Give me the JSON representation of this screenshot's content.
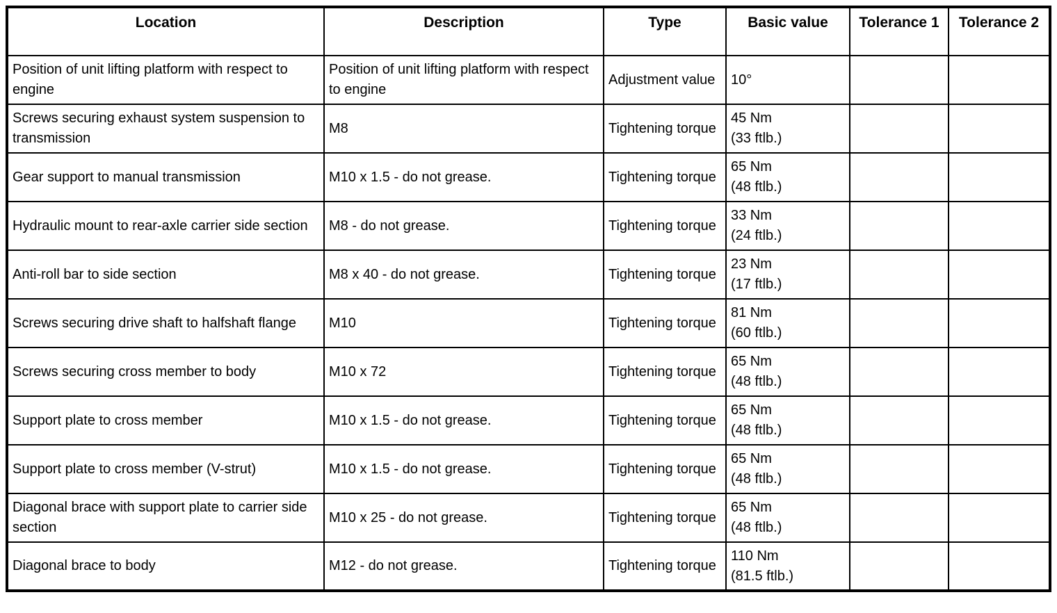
{
  "table": {
    "headers": [
      "Location",
      "Description",
      "Type",
      "Basic value",
      "Tolerance 1",
      "Tolerance 2"
    ],
    "rows": [
      {
        "location": "Position of unit lifting platform with respect to engine",
        "description": "Position of unit lifting platform with respect to engine",
        "type": "Adjustment value",
        "basic_value": "10°",
        "tolerance1": "",
        "tolerance2": ""
      },
      {
        "location": "Screws securing exhaust system suspension to transmission",
        "description": "M8",
        "type": "Tightening torque",
        "basic_value": "45 Nm\n(33 ftlb.)",
        "tolerance1": "",
        "tolerance2": ""
      },
      {
        "location": "Gear support to manual transmission",
        "description": "M10 x 1.5 - do not grease.",
        "type": "Tightening torque",
        "basic_value": "65 Nm\n(48 ftlb.)",
        "tolerance1": "",
        "tolerance2": ""
      },
      {
        "location": "Hydraulic mount to rear-axle carrier side section",
        "description": "M8 - do not grease.",
        "type": "Tightening torque",
        "basic_value": "33 Nm\n(24 ftlb.)",
        "tolerance1": "",
        "tolerance2": ""
      },
      {
        "location": "Anti-roll bar to side section",
        "description": "M8 x 40 - do not grease.",
        "type": "Tightening torque",
        "basic_value": "23 Nm\n(17 ftlb.)",
        "tolerance1": "",
        "tolerance2": ""
      },
      {
        "location": "Screws securing drive shaft to halfshaft flange",
        "description": "M10",
        "type": "Tightening torque",
        "basic_value": "81 Nm\n(60 ftlb.)",
        "tolerance1": "",
        "tolerance2": ""
      },
      {
        "location": "Screws securing cross member to body",
        "description": "M10 x 72",
        "type": "Tightening torque",
        "basic_value": "65 Nm\n(48 ftlb.)",
        "tolerance1": "",
        "tolerance2": ""
      },
      {
        "location": "Support plate to cross member",
        "description": "M10 x 1.5 - do not grease.",
        "type": "Tightening torque",
        "basic_value": "65 Nm\n(48 ftlb.)",
        "tolerance1": "",
        "tolerance2": ""
      },
      {
        "location": "Support plate to cross member (V-strut)",
        "description": "M10 x 1.5 - do not grease.",
        "type": "Tightening torque",
        "basic_value": "65 Nm\n(48 ftlb.)",
        "tolerance1": "",
        "tolerance2": ""
      },
      {
        "location": "Diagonal brace with support plate to carrier side section",
        "description": "M10 x 25 - do not grease.",
        "type": "Tightening torque",
        "basic_value": "65 Nm\n(48 ftlb.)",
        "tolerance1": "",
        "tolerance2": ""
      },
      {
        "location": "Diagonal brace to body",
        "description": "M12 - do not grease.",
        "type": "Tightening torque",
        "basic_value": "110 Nm\n(81.5 ftlb.)",
        "tolerance1": "",
        "tolerance2": ""
      }
    ]
  }
}
